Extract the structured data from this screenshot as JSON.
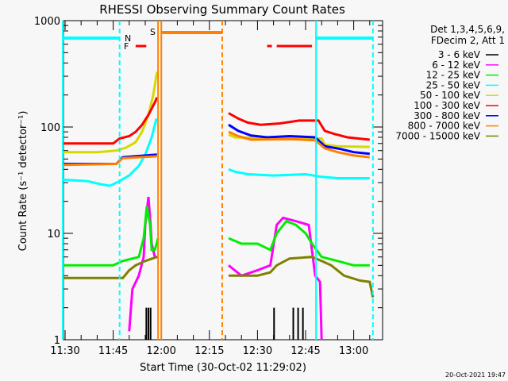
{
  "chart_data": {
    "type": "line",
    "title": "RHESSI Observing Summary Count Rates",
    "xlabel": "Start Time (30-Oct-02 11:29:02)",
    "ylabel": "Count Rate (s⁻¹ detector⁻¹)",
    "yscale": "log",
    "ylim": [
      1,
      1000
    ],
    "xlim": [
      "11:29:02",
      "13:09:00"
    ],
    "x_ticks": [
      "11:30",
      "11:45",
      "12:00",
      "12:15",
      "12:30",
      "12:45",
      "13:00"
    ],
    "y_ticks": [
      "1",
      "10",
      "100",
      "1000"
    ],
    "legend_title": [
      "Det 1,3,4,5,6,9,",
      "FDecim 2, Att 1"
    ],
    "legend_position": "right",
    "footer": "20-Oct-2021 19:47",
    "series": [
      {
        "name": "3 - 6 keV",
        "color": "#000000",
        "segments": [
          [
            [
              "11:55:00",
              1
            ],
            [
              "11:55:20",
              2
            ],
            [
              "11:55:40",
              1
            ],
            [
              "11:56:00",
              2
            ],
            [
              "11:56:20",
              1
            ],
            [
              "11:56:40",
              2
            ],
            [
              "11:57:00",
              1
            ]
          ],
          [
            [
              "12:35:00",
              1
            ],
            [
              "12:35:10",
              2
            ],
            [
              "12:35:20",
              1
            ],
            [
              "12:41:00",
              1
            ],
            [
              "12:41:10",
              2
            ],
            [
              "12:41:20",
              1
            ],
            [
              "12:42:30",
              1
            ],
            [
              "12:42:40",
              2
            ],
            [
              "12:42:50",
              1
            ],
            [
              "12:44:00",
              1
            ],
            [
              "12:44:10",
              2
            ],
            [
              "12:44:20",
              1
            ]
          ]
        ]
      },
      {
        "name": "6 - 12 keV",
        "color": "#ff00ff",
        "segments": [
          [
            [
              "11:50:00",
              1.2
            ],
            [
              "11:51:00",
              3
            ],
            [
              "11:53:00",
              4
            ],
            [
              "11:54:30",
              6
            ],
            [
              "11:55:00",
              12
            ],
            [
              "11:56:00",
              22
            ],
            [
              "11:56:40",
              12
            ],
            [
              "11:57:00",
              8
            ],
            [
              "11:58:00",
              6
            ],
            [
              "11:59:00",
              6
            ]
          ],
          [
            [
              "12:21:00",
              5
            ],
            [
              "12:25:00",
              4
            ],
            [
              "12:30:00",
              4.5
            ],
            [
              "12:34:00",
              5
            ],
            [
              "12:36:00",
              12
            ],
            [
              "12:38:00",
              14
            ],
            [
              "12:42:00",
              13
            ],
            [
              "12:46:00",
              12
            ],
            [
              "12:48:00",
              4
            ],
            [
              "12:49:30",
              3.5
            ],
            [
              "12:50:00",
              1
            ]
          ]
        ]
      },
      {
        "name": "12 - 25 keV",
        "color": "#00ee00",
        "segments": [
          [
            [
              "11:29:02",
              5
            ],
            [
              "11:45:00",
              5
            ],
            [
              "11:48:00",
              5.5
            ],
            [
              "11:53:00",
              6
            ],
            [
              "11:54:30",
              9
            ],
            [
              "11:55:30",
              18
            ],
            [
              "11:56:30",
              12
            ],
            [
              "11:57:00",
              7
            ],
            [
              "11:58:00",
              7
            ],
            [
              "11:59:00",
              9
            ]
          ],
          [
            [
              "12:21:00",
              9
            ],
            [
              "12:25:00",
              8
            ],
            [
              "12:30:00",
              8
            ],
            [
              "12:34:00",
              7
            ],
            [
              "12:36:00",
              10
            ],
            [
              "12:39:00",
              13
            ],
            [
              "12:42:00",
              12
            ],
            [
              "12:45:00",
              10
            ],
            [
              "12:47:00",
              8
            ],
            [
              "12:50:00",
              6
            ],
            [
              "12:55:00",
              5.5
            ],
            [
              "13:00:00",
              5
            ],
            [
              "13:05:00",
              5
            ]
          ]
        ]
      },
      {
        "name": "25 - 50 keV",
        "color": "#00ffff",
        "segments": [
          [
            [
              "11:29:02",
              32
            ],
            [
              "11:37:00",
              31
            ],
            [
              "11:41:00",
              29
            ],
            [
              "11:44:00",
              28
            ],
            [
              "11:47:00",
              31
            ],
            [
              "11:50:00",
              35
            ],
            [
              "11:53:00",
              43
            ],
            [
              "11:55:00",
              55
            ],
            [
              "11:57:00",
              80
            ],
            [
              "11:58:30",
              120
            ]
          ],
          [
            [
              "12:21:00",
              40
            ],
            [
              "12:23:00",
              38
            ],
            [
              "12:27:00",
              36
            ],
            [
              "12:35:00",
              35
            ],
            [
              "12:45:00",
              36
            ],
            [
              "12:50:00",
              34
            ],
            [
              "12:55:00",
              33
            ],
            [
              "13:05:00",
              33
            ]
          ]
        ]
      },
      {
        "name": "50 - 100 keV",
        "color": "#d8d800",
        "segments": [
          [
            [
              "11:29:02",
              58
            ],
            [
              "11:40:00",
              58
            ],
            [
              "11:46:00",
              60
            ],
            [
              "11:49:00",
              64
            ],
            [
              "11:52:00",
              72
            ],
            [
              "11:54:00",
              90
            ],
            [
              "11:56:00",
              130
            ],
            [
              "11:57:30",
              200
            ],
            [
              "11:58:40",
              330
            ]
          ],
          [
            [
              "12:21:00",
              85
            ],
            [
              "12:23:00",
              80
            ],
            [
              "12:35:00",
              78
            ],
            [
              "12:50:00",
              78
            ],
            [
              "12:51:00",
              68
            ],
            [
              "12:55:00",
              66
            ],
            [
              "13:05:00",
              65
            ]
          ]
        ]
      },
      {
        "name": "100 - 300 keV",
        "color": "#ff0000",
        "segments": [
          [
            [
              "11:29:02",
              70
            ],
            [
              "11:45:00",
              70
            ],
            [
              "11:47:00",
              78
            ],
            [
              "11:50:00",
              82
            ],
            [
              "11:52:00",
              90
            ],
            [
              "11:54:00",
              105
            ],
            [
              "11:56:00",
              130
            ],
            [
              "11:58:00",
              170
            ],
            [
              "11:58:40",
              190
            ]
          ],
          [
            [
              "12:21:00",
              135
            ],
            [
              "12:24:00",
              120
            ],
            [
              "12:27:00",
              110
            ],
            [
              "12:31:00",
              105
            ],
            [
              "12:37:00",
              108
            ],
            [
              "12:43:00",
              115
            ],
            [
              "12:49:00",
              115
            ],
            [
              "12:51:00",
              92
            ],
            [
              "12:54:00",
              86
            ],
            [
              "12:58:00",
              80
            ],
            [
              "13:05:00",
              76
            ]
          ]
        ]
      },
      {
        "name": "300 - 800 keV",
        "color": "#0000ff",
        "segments": [
          [
            [
              "11:29:02",
              45
            ],
            [
              "11:46:00",
              45
            ],
            [
              "11:48:00",
              52
            ],
            [
              "11:58:40",
              55
            ]
          ],
          [
            [
              "12:21:00",
              105
            ],
            [
              "12:24:00",
              92
            ],
            [
              "12:28:00",
              83
            ],
            [
              "12:33:00",
              80
            ],
            [
              "12:40:00",
              82
            ],
            [
              "12:48:00",
              80
            ],
            [
              "12:51:00",
              66
            ],
            [
              "12:56:00",
              62
            ],
            [
              "13:00:00",
              58
            ],
            [
              "13:05:00",
              56
            ]
          ]
        ]
      },
      {
        "name": "800 - 7000 keV",
        "color": "#ff8000",
        "segments": [
          [
            [
              "11:29:02",
              44
            ],
            [
              "11:46:00",
              45
            ],
            [
              "11:48:00",
              51
            ],
            [
              "11:58:40",
              53
            ]
          ],
          [
            [
              "12:21:00",
              90
            ],
            [
              "12:24:00",
              82
            ],
            [
              "12:28:00",
              76
            ],
            [
              "12:40:00",
              77
            ],
            [
              "12:48:00",
              75
            ],
            [
              "12:51:00",
              63
            ],
            [
              "12:55:00",
              58
            ],
            [
              "13:00:00",
              54
            ],
            [
              "13:05:00",
              52
            ]
          ]
        ]
      },
      {
        "name": "7000 - 15000 keV",
        "color": "#808000",
        "segments": [
          [
            [
              "11:29:02",
              3.8
            ],
            [
              "11:48:00",
              3.8
            ],
            [
              "11:50:00",
              4.5
            ],
            [
              "11:52:00",
              5
            ],
            [
              "11:55:00",
              5.5
            ],
            [
              "11:58:40",
              6
            ]
          ],
          [
            [
              "12:21:00",
              4
            ],
            [
              "12:30:00",
              4
            ],
            [
              "12:34:00",
              4.3
            ],
            [
              "12:36:00",
              5
            ],
            [
              "12:40:00",
              5.8
            ],
            [
              "12:47:00",
              6
            ],
            [
              "12:50:00",
              5.5
            ],
            [
              "12:53:00",
              5
            ],
            [
              "12:57:00",
              4
            ],
            [
              "13:02:00",
              3.6
            ],
            [
              "13:05:00",
              3.5
            ],
            [
              "13:06:00",
              2.5
            ]
          ]
        ]
      }
    ],
    "markers": {
      "night": {
        "label": "N",
        "color": "#00ffff",
        "intervals": [
          [
            "11:29:02",
            "11:47:00"
          ],
          [
            "12:48:00",
            "13:06:00"
          ]
        ]
      },
      "saa": {
        "label": "S",
        "color": "#ff8000",
        "intervals": [
          [
            "12:00:00",
            "12:19:00"
          ]
        ],
        "extra_line": "11:59:00"
      },
      "flare": {
        "label": "F",
        "color": "#ff0000",
        "intervals": [
          [
            "11:52:00",
            "11:55:20"
          ],
          [
            "12:33:00",
            "12:34:30"
          ],
          [
            "12:36:00",
            "12:47:00"
          ]
        ]
      }
    }
  }
}
